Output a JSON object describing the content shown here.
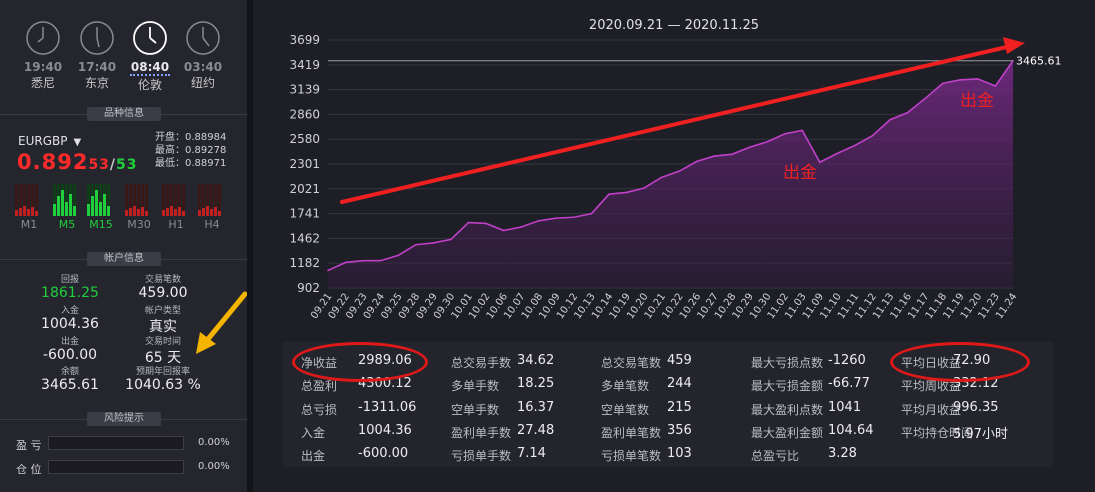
{
  "clocks": [
    {
      "time": "19:40",
      "city": "悉尼",
      "active": false
    },
    {
      "time": "17:40",
      "city": "东京",
      "active": false
    },
    {
      "time": "08:40",
      "city": "伦敦",
      "active": true
    },
    {
      "time": "03:40",
      "city": "纽约",
      "active": false
    }
  ],
  "symbol_section": {
    "title": "品种信息",
    "symbol": "EURGBP",
    "price_main": "0.892",
    "price_small_a": "53",
    "price_slash": "/",
    "price_small_b": "53",
    "open_label": "开盘：0.88984",
    "high_label": "最高：0.89278",
    "low_label": "最低：0.88971",
    "timeframes": [
      "M1",
      "M5",
      "M15",
      "M30",
      "H1",
      "H4"
    ],
    "timeframe_colors": [
      "#8a8a92",
      "#1fcf3c",
      "#1fcf3c",
      "#8a8a92",
      "#8a8a92",
      "#8a8a92"
    ]
  },
  "account_section": {
    "title": "帐户信息",
    "items": [
      {
        "label": "回报",
        "value": "1861.25",
        "color": "#1fcf3c"
      },
      {
        "label": "交易笔数",
        "value": "459.00",
        "color": "#ececf0"
      },
      {
        "label": "入金",
        "value": "1004.36",
        "color": "#ececf0"
      },
      {
        "label": "帐户类型",
        "value": "真实",
        "color": "#ececf0"
      },
      {
        "label": "出金",
        "value": "-600.00",
        "color": "#ececf0"
      },
      {
        "label": "交易时间",
        "value": "65 天",
        "color": "#ececf0"
      },
      {
        "label": "余额",
        "value": "3465.61",
        "color": "#ececf0"
      },
      {
        "label": "预期年回报率",
        "value": "1040.63 %",
        "color": "#ececf0"
      }
    ]
  },
  "risk_section": {
    "title": "风险提示",
    "rows": [
      {
        "label": "盈 亏",
        "pct": "0.00%",
        "fill": 0
      },
      {
        "label": "仓 位",
        "pct": "0.00%",
        "fill": 0
      }
    ]
  },
  "chart_data": {
    "type": "area",
    "title": "2020.09.21 — 2020.11.25",
    "y_ticks": [
      "3699",
      "3419",
      "3139",
      "2860",
      "2580",
      "2301",
      "2021",
      "1741",
      "1462",
      "1182",
      "902"
    ],
    "ylim": [
      902,
      3699
    ],
    "x_ticks": [
      "09.21",
      "09.22",
      "09.23",
      "09.24",
      "09.25",
      "09.28",
      "09.29",
      "09.30",
      "10.01",
      "10.02",
      "10.06",
      "10.07",
      "10.08",
      "10.09",
      "10.12",
      "10.13",
      "10.14",
      "10.19",
      "10.20",
      "10.21",
      "10.22",
      "10.26",
      "10.27",
      "10.28",
      "10.29",
      "10.30",
      "11.02",
      "11.03",
      "11.09",
      "11.10",
      "11.11",
      "11.12",
      "11.13",
      "11.16",
      "11.17",
      "11.18",
      "11.19",
      "11.20",
      "11.23",
      "11.24"
    ],
    "values": [
      1100,
      1190,
      1210,
      1210,
      1270,
      1390,
      1410,
      1450,
      1640,
      1630,
      1550,
      1590,
      1660,
      1690,
      1700,
      1740,
      1960,
      1980,
      2030,
      2150,
      2220,
      2330,
      2390,
      2410,
      2490,
      2550,
      2640,
      2680,
      2320,
      2420,
      2510,
      2620,
      2800,
      2880,
      3040,
      3210,
      3250,
      3260,
      3180,
      3465.61
    ],
    "last_value_label": "3465.61",
    "annotations": [
      "出金",
      "出金"
    ],
    "line_color": "#c040c8",
    "trend_arrow_color": "#f02020"
  },
  "stats": {
    "columns": [
      [
        {
          "label": "净收益",
          "value": "2989.06"
        },
        {
          "label": "总盈利",
          "value": "4300.12"
        },
        {
          "label": "总亏损",
          "value": "-1311.06"
        },
        {
          "label": "入金",
          "value": "1004.36"
        },
        {
          "label": "出金",
          "value": "-600.00"
        }
      ],
      [
        {
          "label": "总交易手数",
          "value": "34.62"
        },
        {
          "label": "多单手数",
          "value": "18.25"
        },
        {
          "label": "空单手数",
          "value": "16.37"
        },
        {
          "label": "盈利单手数",
          "value": "27.48"
        },
        {
          "label": "亏损单手数",
          "value": "7.14"
        }
      ],
      [
        {
          "label": "总交易笔数",
          "value": "459"
        },
        {
          "label": "多单笔数",
          "value": "244"
        },
        {
          "label": "空单笔数",
          "value": "215"
        },
        {
          "label": "盈利单笔数",
          "value": "356"
        },
        {
          "label": "亏损单笔数",
          "value": "103"
        }
      ],
      [
        {
          "label": "最大亏损点数",
          "value": "-1260"
        },
        {
          "label": "最大亏损金额",
          "value": "-66.77"
        },
        {
          "label": "最大盈利点数",
          "value": "1041"
        },
        {
          "label": "最大盈利金额",
          "value": "104.64"
        },
        {
          "label": "总盈亏比",
          "value": "3.28"
        }
      ],
      [
        {
          "label": "平均日收益",
          "value": "72.90"
        },
        {
          "label": "平均周收益",
          "value": "332.12"
        },
        {
          "label": "平均月收益",
          "value": "996.35"
        },
        {
          "label": "平均持仓时间",
          "value": "5.97小时"
        },
        {
          "label": "",
          "value": ""
        }
      ]
    ]
  }
}
